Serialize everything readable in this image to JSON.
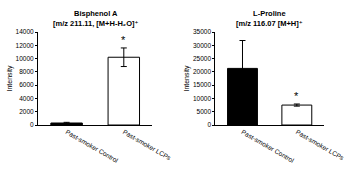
{
  "chart_data": [
    {
      "type": "bar",
      "title": "Bisphenol A",
      "subtitle": "[m/z 211.11, [M+H-H₂O]⁺",
      "y_label": "Intensity",
      "categories": [
        "Past-smoker Control",
        "Past-smoker LCPs"
      ],
      "values": [
        300,
        10200
      ],
      "errors": [
        100,
        1400
      ],
      "colors": [
        "#000000",
        "#ffffff"
      ],
      "ylim": [
        0,
        14000
      ],
      "yticks": [
        0,
        2000,
        4000,
        6000,
        8000,
        10000,
        12000,
        14000
      ],
      "grid": false,
      "annotations": [
        {
          "text": "*",
          "category": "Past-smoker LCPs"
        }
      ]
    },
    {
      "type": "bar",
      "title": "L-Proline",
      "subtitle": "[m/z 116.07 [M+H]⁺",
      "y_label": "Intensity",
      "categories": [
        "Past-smoker Control",
        "Past-smoker LCPs"
      ],
      "values": [
        21300,
        7500
      ],
      "errors": [
        10500,
        400
      ],
      "colors": [
        "#000000",
        "#ffffff"
      ],
      "ylim": [
        0,
        35000
      ],
      "yticks": [
        0,
        5000,
        10000,
        15000,
        20000,
        25000,
        30000,
        35000
      ],
      "grid": false,
      "annotations": [
        {
          "text": "*",
          "category": "Past-smoker LCPs"
        }
      ]
    }
  ]
}
